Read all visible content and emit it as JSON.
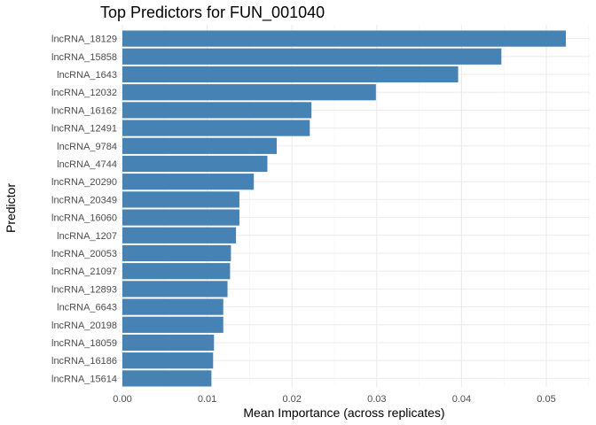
{
  "chart_data": {
    "type": "bar",
    "orientation": "horizontal",
    "title": "Top Predictors for FUN_001040",
    "xlabel": "Mean Importance (across replicates)",
    "ylabel": "Predictor",
    "xlim": [
      0,
      0.0553
    ],
    "xticks": [
      0.0,
      0.01,
      0.02,
      0.03,
      0.04,
      0.05
    ],
    "xtick_labels": [
      "0.00",
      "0.01",
      "0.02",
      "0.03",
      "0.04",
      "0.05"
    ],
    "grid": true,
    "bar_color": "#4682b4",
    "categories": [
      "lncRNA_18129",
      "lncRNA_15858",
      "lncRNA_1643",
      "lncRNA_12032",
      "lncRNA_16162",
      "lncRNA_12491",
      "lncRNA_9784",
      "lncRNA_4744",
      "lncRNA_20290",
      "lncRNA_20349",
      "lncRNA_16060",
      "lncRNA_1207",
      "lncRNA_20053",
      "lncRNA_21097",
      "lncRNA_12893",
      "lncRNA_6643",
      "lncRNA_20198",
      "lncRNA_18059",
      "lncRNA_16186",
      "lncRNA_15614"
    ],
    "values": [
      0.0523,
      0.0447,
      0.0396,
      0.0299,
      0.0223,
      0.0221,
      0.0182,
      0.0171,
      0.0155,
      0.0138,
      0.0138,
      0.0134,
      0.0128,
      0.0127,
      0.0124,
      0.0119,
      0.0119,
      0.0108,
      0.0107,
      0.0105
    ]
  }
}
